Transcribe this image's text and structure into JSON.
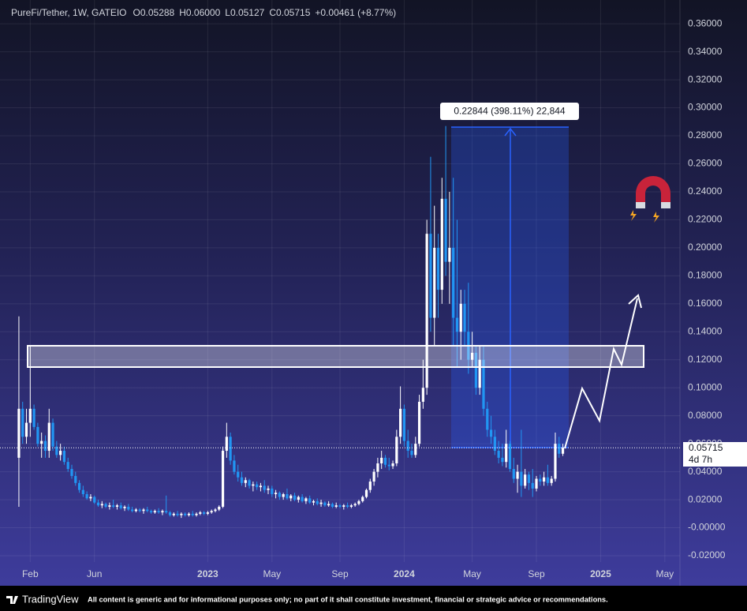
{
  "chart_data": {
    "type": "candlestick",
    "symbol": "PureFi/Tether, 1W, GATEIO",
    "legend_values": [
      "O0.05288",
      "H0.06000",
      "L0.05127",
      "C0.05715",
      "+0.00461 (+8.77%)"
    ],
    "measure_label": "0.22844 (398.11%) 22,844",
    "last_price": 0.05715,
    "countdown": "4d 7h",
    "up_color": "#ffffff",
    "down_color": "#2196f3",
    "xlim": [
      -5,
      175
    ],
    "xticks": [
      {
        "value": 3,
        "label": "Feb"
      },
      {
        "value": 20,
        "label": "Jun"
      },
      {
        "value": 50,
        "label": "2023"
      },
      {
        "value": 67,
        "label": "May"
      },
      {
        "value": 85,
        "label": "Sep"
      },
      {
        "value": 102,
        "label": "2024"
      },
      {
        "value": 120,
        "label": "May"
      },
      {
        "value": 137,
        "label": "Sep"
      },
      {
        "value": 154,
        "label": "2025"
      },
      {
        "value": 171,
        "label": "May"
      }
    ],
    "ylim": [
      -0.0245,
      0.377
    ],
    "yticks": [
      {
        "value": 0.36,
        "label": "0.36000"
      },
      {
        "value": 0.34,
        "label": "0.34000"
      },
      {
        "value": 0.32,
        "label": "0.32000"
      },
      {
        "value": 0.3,
        "label": "0.30000"
      },
      {
        "value": 0.28,
        "label": "0.28000"
      },
      {
        "value": 0.26,
        "label": "0.26000"
      },
      {
        "value": 0.24,
        "label": "0.24000"
      },
      {
        "value": 0.22,
        "label": "0.22000"
      },
      {
        "value": 0.2,
        "label": "0.20000"
      },
      {
        "value": 0.18,
        "label": "0.18000"
      },
      {
        "value": 0.16,
        "label": "0.16000"
      },
      {
        "value": 0.14,
        "label": "0.14000"
      },
      {
        "value": 0.12,
        "label": "0.12000"
      },
      {
        "value": 0.1,
        "label": "0.10000"
      },
      {
        "value": 0.08,
        "label": "0.08000"
      },
      {
        "value": 0.06,
        "label": "0.06000"
      },
      {
        "value": 0.04,
        "label": "0.04000"
      },
      {
        "value": 0.02,
        "label": "0.02000"
      },
      {
        "value": 0,
        "label": "-0.00000"
      },
      {
        "value": -0.02,
        "label": "-0.02000"
      }
    ],
    "grid": true,
    "ohlc": [
      [
        0.05,
        0.151,
        0.015,
        0.085
      ],
      [
        0.085,
        0.09,
        0.06,
        0.065
      ],
      [
        0.065,
        0.085,
        0.06,
        0.075
      ],
      [
        0.075,
        0.13,
        0.065,
        0.085
      ],
      [
        0.085,
        0.088,
        0.07,
        0.072
      ],
      [
        0.072,
        0.075,
        0.058,
        0.06
      ],
      [
        0.06,
        0.068,
        0.05,
        0.062
      ],
      [
        0.062,
        0.066,
        0.05,
        0.055
      ],
      [
        0.055,
        0.085,
        0.05,
        0.075
      ],
      [
        0.075,
        0.078,
        0.055,
        0.058
      ],
      [
        0.058,
        0.062,
        0.05,
        0.052
      ],
      [
        0.052,
        0.06,
        0.048,
        0.055
      ],
      [
        0.055,
        0.058,
        0.045,
        0.047
      ],
      [
        0.047,
        0.05,
        0.04,
        0.042
      ],
      [
        0.042,
        0.045,
        0.035,
        0.037
      ],
      [
        0.037,
        0.04,
        0.03,
        0.032
      ],
      [
        0.032,
        0.034,
        0.025,
        0.027
      ],
      [
        0.027,
        0.03,
        0.022,
        0.024
      ],
      [
        0.024,
        0.026,
        0.02,
        0.021
      ],
      [
        0.021,
        0.024,
        0.019,
        0.022
      ],
      [
        0.022,
        0.023,
        0.017,
        0.018
      ],
      [
        0.018,
        0.02,
        0.015,
        0.016
      ],
      [
        0.016,
        0.019,
        0.014,
        0.017
      ],
      [
        0.017,
        0.018,
        0.014,
        0.015
      ],
      [
        0.015,
        0.018,
        0.013,
        0.016
      ],
      [
        0.016,
        0.02,
        0.014,
        0.015
      ],
      [
        0.015,
        0.017,
        0.013,
        0.016
      ],
      [
        0.016,
        0.018,
        0.013,
        0.014
      ],
      [
        0.014,
        0.016,
        0.012,
        0.015
      ],
      [
        0.015,
        0.017,
        0.012,
        0.013
      ],
      [
        0.013,
        0.015,
        0.011,
        0.012
      ],
      [
        0.012,
        0.014,
        0.011,
        0.013
      ],
      [
        0.013,
        0.014,
        0.011,
        0.012
      ],
      [
        0.012,
        0.014,
        0.01,
        0.013
      ],
      [
        0.013,
        0.015,
        0.011,
        0.012
      ],
      [
        0.012,
        0.013,
        0.01,
        0.011
      ],
      [
        0.011,
        0.013,
        0.01,
        0.012
      ],
      [
        0.012,
        0.014,
        0.01,
        0.011
      ],
      [
        0.011,
        0.013,
        0.009,
        0.012
      ],
      [
        0.012,
        0.023,
        0.01,
        0.011
      ],
      [
        0.011,
        0.012,
        0.008,
        0.009
      ],
      [
        0.009,
        0.011,
        0.008,
        0.01
      ],
      [
        0.01,
        0.012,
        0.008,
        0.009
      ],
      [
        0.009,
        0.011,
        0.007,
        0.01
      ],
      [
        0.01,
        0.011,
        0.008,
        0.009
      ],
      [
        0.009,
        0.011,
        0.008,
        0.01
      ],
      [
        0.01,
        0.012,
        0.008,
        0.009
      ],
      [
        0.009,
        0.011,
        0.008,
        0.01
      ],
      [
        0.01,
        0.012,
        0.009,
        0.011
      ],
      [
        0.011,
        0.012,
        0.009,
        0.01
      ],
      [
        0.01,
        0.012,
        0.009,
        0.011
      ],
      [
        0.011,
        0.013,
        0.01,
        0.012
      ],
      [
        0.012,
        0.014,
        0.011,
        0.013
      ],
      [
        0.013,
        0.016,
        0.012,
        0.015
      ],
      [
        0.015,
        0.058,
        0.014,
        0.055
      ],
      [
        0.055,
        0.075,
        0.05,
        0.065
      ],
      [
        0.065,
        0.068,
        0.045,
        0.048
      ],
      [
        0.048,
        0.052,
        0.038,
        0.04
      ],
      [
        0.04,
        0.045,
        0.033,
        0.036
      ],
      [
        0.036,
        0.04,
        0.03,
        0.032
      ],
      [
        0.032,
        0.036,
        0.029,
        0.034
      ],
      [
        0.034,
        0.035,
        0.028,
        0.03
      ],
      [
        0.03,
        0.033,
        0.026,
        0.031
      ],
      [
        0.031,
        0.033,
        0.027,
        0.029
      ],
      [
        0.029,
        0.032,
        0.026,
        0.03
      ],
      [
        0.03,
        0.034,
        0.025,
        0.027
      ],
      [
        0.027,
        0.03,
        0.024,
        0.028
      ],
      [
        0.028,
        0.03,
        0.022,
        0.024
      ],
      [
        0.024,
        0.027,
        0.021,
        0.025
      ],
      [
        0.025,
        0.026,
        0.02,
        0.022
      ],
      [
        0.022,
        0.025,
        0.02,
        0.024
      ],
      [
        0.024,
        0.028,
        0.02,
        0.021
      ],
      [
        0.021,
        0.024,
        0.019,
        0.023
      ],
      [
        0.023,
        0.025,
        0.019,
        0.02
      ],
      [
        0.02,
        0.023,
        0.018,
        0.022
      ],
      [
        0.022,
        0.024,
        0.018,
        0.019
      ],
      [
        0.019,
        0.022,
        0.017,
        0.021
      ],
      [
        0.021,
        0.023,
        0.017,
        0.018
      ],
      [
        0.018,
        0.02,
        0.016,
        0.019
      ],
      [
        0.019,
        0.021,
        0.016,
        0.017
      ],
      [
        0.017,
        0.02,
        0.015,
        0.018
      ],
      [
        0.018,
        0.019,
        0.015,
        0.016
      ],
      [
        0.016,
        0.019,
        0.015,
        0.017
      ],
      [
        0.017,
        0.018,
        0.014,
        0.015
      ],
      [
        0.015,
        0.018,
        0.014,
        0.016
      ],
      [
        0.016,
        0.017,
        0.014,
        0.015
      ],
      [
        0.015,
        0.017,
        0.013,
        0.016
      ],
      [
        0.016,
        0.018,
        0.014,
        0.015
      ],
      [
        0.015,
        0.017,
        0.014,
        0.016
      ],
      [
        0.016,
        0.018,
        0.015,
        0.017
      ],
      [
        0.017,
        0.02,
        0.016,
        0.019
      ],
      [
        0.019,
        0.023,
        0.018,
        0.022
      ],
      [
        0.022,
        0.028,
        0.021,
        0.027
      ],
      [
        0.027,
        0.035,
        0.025,
        0.033
      ],
      [
        0.033,
        0.042,
        0.03,
        0.04
      ],
      [
        0.04,
        0.05,
        0.036,
        0.046
      ],
      [
        0.046,
        0.055,
        0.042,
        0.05
      ],
      [
        0.05,
        0.052,
        0.043,
        0.045
      ],
      [
        0.045,
        0.05,
        0.041,
        0.044
      ],
      [
        0.044,
        0.048,
        0.042,
        0.046
      ],
      [
        0.046,
        0.07,
        0.044,
        0.065
      ],
      [
        0.065,
        0.101,
        0.06,
        0.085
      ],
      [
        0.085,
        0.088,
        0.058,
        0.062
      ],
      [
        0.062,
        0.07,
        0.05,
        0.055
      ],
      [
        0.055,
        0.06,
        0.05,
        0.052
      ],
      [
        0.052,
        0.065,
        0.05,
        0.06
      ],
      [
        0.06,
        0.095,
        0.058,
        0.09
      ],
      [
        0.09,
        0.12,
        0.085,
        0.1
      ],
      [
        0.1,
        0.22,
        0.095,
        0.21
      ],
      [
        0.21,
        0.265,
        0.14,
        0.15
      ],
      [
        0.15,
        0.23,
        0.13,
        0.2
      ],
      [
        0.2,
        0.21,
        0.15,
        0.17
      ],
      [
        0.17,
        0.25,
        0.16,
        0.235
      ],
      [
        0.235,
        0.287,
        0.18,
        0.19
      ],
      [
        0.19,
        0.24,
        0.16,
        0.2
      ],
      [
        0.2,
        0.25,
        0.13,
        0.15
      ],
      [
        0.15,
        0.22,
        0.115,
        0.14
      ],
      [
        0.14,
        0.17,
        0.12,
        0.16
      ],
      [
        0.16,
        0.17,
        0.13,
        0.14
      ],
      [
        0.14,
        0.175,
        0.11,
        0.12
      ],
      [
        0.12,
        0.14,
        0.115,
        0.125
      ],
      [
        0.125,
        0.13,
        0.095,
        0.1
      ],
      [
        0.1,
        0.13,
        0.095,
        0.12
      ],
      [
        0.12,
        0.13,
        0.08,
        0.085
      ],
      [
        0.085,
        0.09,
        0.065,
        0.07
      ],
      [
        0.07,
        0.08,
        0.06,
        0.065
      ],
      [
        0.065,
        0.07,
        0.052,
        0.055
      ],
      [
        0.055,
        0.062,
        0.046,
        0.05
      ],
      [
        0.05,
        0.06,
        0.044,
        0.047
      ],
      [
        0.047,
        0.07,
        0.043,
        0.06
      ],
      [
        0.06,
        0.062,
        0.04,
        0.042
      ],
      [
        0.042,
        0.05,
        0.032,
        0.035
      ],
      [
        0.035,
        0.045,
        0.025,
        0.04
      ],
      [
        0.04,
        0.07,
        0.022,
        0.03
      ],
      [
        0.03,
        0.042,
        0.028,
        0.038
      ],
      [
        0.038,
        0.04,
        0.027,
        0.032
      ],
      [
        0.032,
        0.042,
        0.022,
        0.028
      ],
      [
        0.028,
        0.037,
        0.026,
        0.035
      ],
      [
        0.035,
        0.038,
        0.03,
        0.033
      ],
      [
        0.033,
        0.04,
        0.03,
        0.036
      ],
      [
        0.036,
        0.045,
        0.03,
        0.032
      ],
      [
        0.032,
        0.037,
        0.03,
        0.035
      ],
      [
        0.035,
        0.068,
        0.033,
        0.06
      ],
      [
        0.06,
        0.065,
        0.05,
        0.05288
      ],
      [
        0.05288,
        0.06,
        0.05127,
        0.05715
      ]
    ]
  },
  "footer": {
    "brand": "TradingView",
    "disclaimer": "All content is generic and for informational purposes only; no part of it shall constitute investment, financial or strategic advice or recommendations."
  }
}
